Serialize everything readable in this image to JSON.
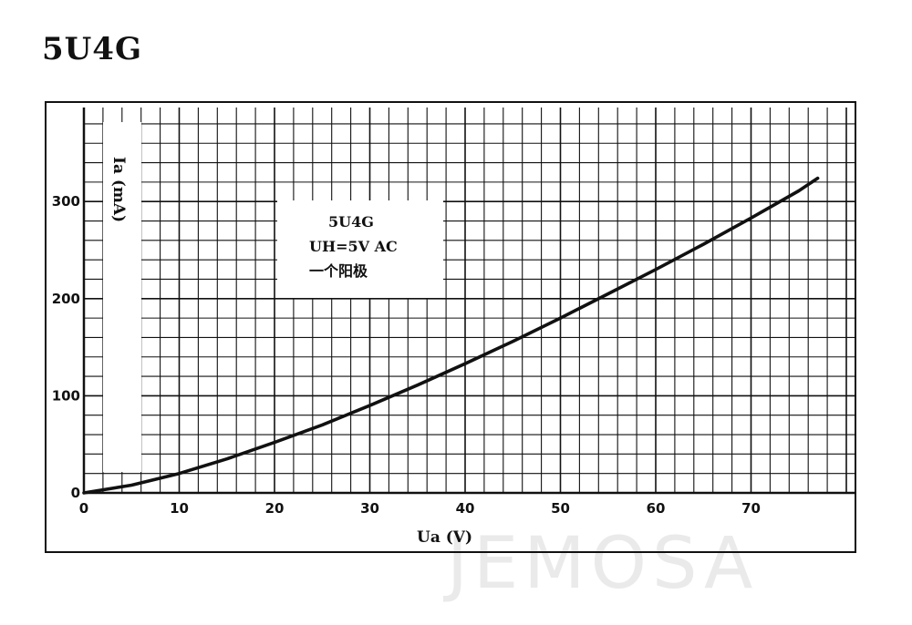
{
  "page": {
    "title": "5U4G"
  },
  "legend": {
    "lines": [
      "5U4G",
      "UH=5V AC",
      "一个阳极"
    ]
  },
  "watermark": "JEMOSA",
  "colors": {
    "line": "#111111",
    "grid": "#111111",
    "background": "#ffffff"
  },
  "chart_data": {
    "type": "line",
    "title": "5U4G",
    "xlabel": "Ua (V)",
    "ylabel": "Ia (mA)",
    "xlim": [
      0,
      80
    ],
    "ylim": [
      0,
      400
    ],
    "xticks": [
      0,
      10,
      20,
      30,
      40,
      50,
      60,
      70
    ],
    "yticks": [
      0,
      100,
      200,
      300
    ],
    "grid": true,
    "legend_position": "top-left",
    "series": [
      {
        "name": "5U4G",
        "x": [
          0,
          5,
          10,
          15,
          20,
          25,
          30,
          35,
          40,
          45,
          50,
          55,
          60,
          65,
          70,
          75,
          77
        ],
        "y": [
          0,
          8,
          20,
          35,
          52,
          70,
          90,
          111,
          133,
          156,
          180,
          205,
          230,
          256,
          283,
          311,
          324
        ]
      }
    ]
  }
}
